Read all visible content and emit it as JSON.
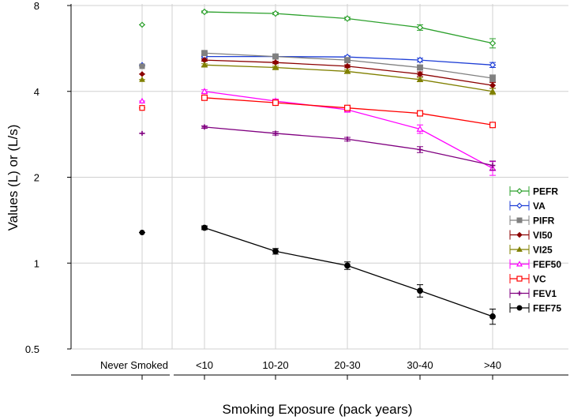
{
  "chart_data": {
    "type": "line",
    "title": "",
    "xlabel": "Smoking Exposure (pack years)",
    "ylabel": "Values (L) or (L/s)",
    "yscale": "log2",
    "ylim": [
      0.5,
      8
    ],
    "yticks": [
      "0.5",
      "1",
      "2",
      "4",
      "8"
    ],
    "ytick_values": [
      0.5,
      1,
      2,
      4,
      8
    ],
    "reference_category": "Never Smoked",
    "categories": [
      "<10",
      "10-20",
      "20-30",
      "30-40",
      ">40"
    ],
    "grid": true,
    "legend_position": "right",
    "series": [
      {
        "name": "PEFR",
        "color": "#2ca02c",
        "marker": "diamond-open",
        "never": 6.85,
        "values": [
          7.6,
          7.5,
          7.2,
          6.7,
          5.9
        ],
        "errors": [
          0.06,
          0.07,
          0.08,
          0.15,
          0.22
        ]
      },
      {
        "name": "VA",
        "color": "#1f3fd6",
        "marker": "diamond-open",
        "never": 4.95,
        "values": [
          5.3,
          5.3,
          5.28,
          5.15,
          4.95
        ],
        "errors": [
          0.05,
          0.05,
          0.05,
          0.08,
          0.1
        ]
      },
      {
        "name": "PIFR",
        "color": "#808080",
        "marker": "square",
        "never": 4.9,
        "values": [
          5.45,
          5.3,
          5.15,
          4.85,
          4.45
        ],
        "errors": [
          0.05,
          0.05,
          0.06,
          0.08,
          0.12
        ]
      },
      {
        "name": "VI50",
        "color": "#8b0000",
        "marker": "diamond",
        "never": 4.6,
        "values": [
          5.15,
          5.05,
          4.9,
          4.6,
          4.2
        ],
        "errors": [
          0.05,
          0.05,
          0.06,
          0.08,
          0.1
        ]
      },
      {
        "name": "VI25",
        "color": "#808000",
        "marker": "triangle",
        "never": 4.4,
        "values": [
          4.95,
          4.85,
          4.7,
          4.4,
          4.0
        ],
        "errors": [
          0.05,
          0.05,
          0.06,
          0.07,
          0.1
        ]
      },
      {
        "name": "FEF50",
        "color": "#ff00ff",
        "marker": "triangle-open",
        "never": 3.7,
        "values": [
          4.0,
          3.7,
          3.45,
          2.95,
          2.15
        ],
        "errors": [
          0.05,
          0.06,
          0.07,
          0.1,
          0.12
        ]
      },
      {
        "name": "VC",
        "color": "#ff0000",
        "marker": "square-open",
        "never": 3.5,
        "values": [
          3.8,
          3.65,
          3.5,
          3.35,
          3.05
        ],
        "errors": [
          0.04,
          0.05,
          0.05,
          0.05,
          0.06
        ]
      },
      {
        "name": "FEV1",
        "color": "#800080",
        "marker": "plus",
        "never": 2.85,
        "values": [
          3.0,
          2.85,
          2.72,
          2.5,
          2.2
        ],
        "errors": [
          0.03,
          0.04,
          0.04,
          0.06,
          0.08
        ]
      },
      {
        "name": "FEF75",
        "color": "#000000",
        "marker": "circle",
        "never": 1.28,
        "values": [
          1.33,
          1.1,
          0.98,
          0.8,
          0.65
        ],
        "errors": [
          0.02,
          0.025,
          0.03,
          0.04,
          0.04
        ]
      }
    ]
  }
}
